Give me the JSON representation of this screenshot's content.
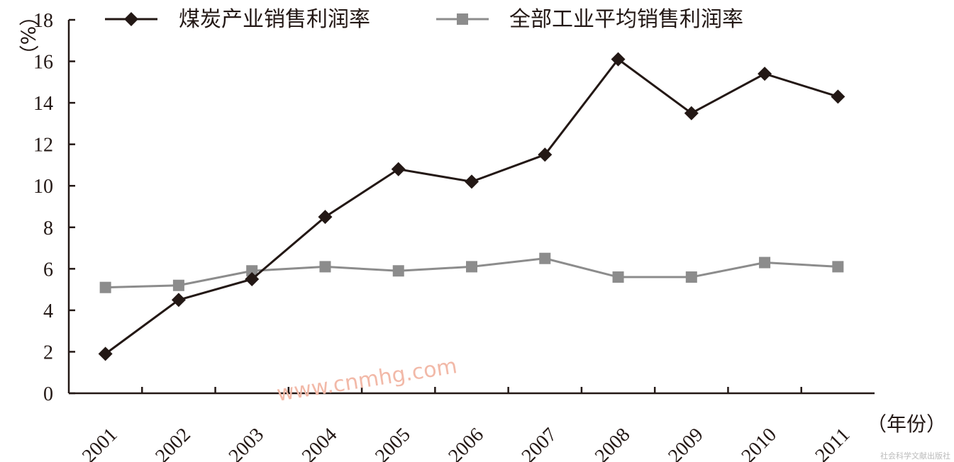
{
  "chart_data": {
    "type": "line",
    "categories": [
      "2001",
      "2002",
      "2003",
      "2004",
      "2005",
      "2006",
      "2007",
      "2008",
      "2009",
      "2010",
      "2011"
    ],
    "series": [
      {
        "name": "煤炭产业销售利润率",
        "color": "#231815",
        "marker": "diamond",
        "values": [
          1.9,
          4.5,
          5.5,
          8.5,
          10.8,
          10.2,
          11.5,
          16.1,
          13.5,
          15.4,
          14.3
        ]
      },
      {
        "name": "全部工业平均销售利润率",
        "color": "#8c8c8c",
        "marker": "square",
        "values": [
          5.1,
          5.2,
          5.9,
          6.1,
          5.9,
          6.1,
          6.5,
          5.6,
          5.6,
          6.3,
          6.1
        ]
      }
    ],
    "ylim": [
      0,
      18
    ],
    "yticks": [
      "0",
      "2",
      "4",
      "6",
      "8",
      "10",
      "12",
      "14",
      "16",
      "18"
    ],
    "ylabel": "（%）",
    "xlabel": "（年份）",
    "grid": false,
    "legend_position": "top"
  },
  "watermark": "www.cnmhg.com",
  "publisher": "社会科学文献出版社"
}
